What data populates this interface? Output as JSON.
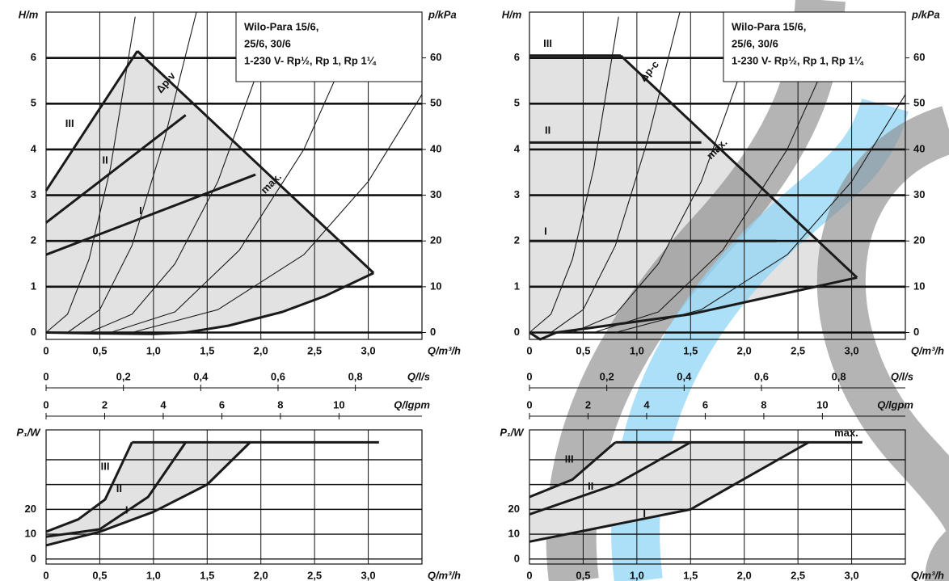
{
  "chart_data": [
    {
      "type": "line",
      "x_label": "Q/m³/h",
      "y_label": "H/m",
      "y2_label": "p/kPa",
      "box": [
        "Wilo-Para 15/6,",
        "25/6, 30/6",
        "1-230 V- Rp½, Rp 1, Rp 1¼"
      ],
      "annotations": [
        "Δp-v"
      ],
      "xlim": [
        0,
        3.5
      ],
      "xticks": [
        0,
        {
          "value": 0.5,
          "label": "0,5"
        },
        {
          "value": 1.0,
          "label": "1,0"
        },
        {
          "value": 1.5,
          "label": "1,5"
        },
        {
          "value": 2.0,
          "label": "2,0"
        },
        {
          "value": 2.5,
          "label": "2,5"
        },
        {
          "value": 3.0,
          "label": "3,0"
        }
      ],
      "ylim": [
        -0.15,
        7
      ],
      "yticks": [
        0,
        1,
        2,
        3,
        4,
        5,
        6
      ],
      "y2lim": [
        -1.5,
        70
      ],
      "y2ticks": [
        0,
        10,
        20,
        30,
        40,
        50,
        60
      ],
      "ls_axis": {
        "label": "Q/l/s",
        "ticks": [
          0,
          {
            "value": 0.2,
            "label": "0,2"
          },
          {
            "value": 0.4,
            "label": "0,4"
          },
          {
            "value": 0.6,
            "label": "0,6"
          },
          {
            "value": 0.8,
            "label": "0,8"
          }
        ]
      },
      "gpm_axis": {
        "label": "Q/lgpm",
        "ticks": [
          0,
          2,
          4,
          6,
          8,
          10
        ]
      },
      "grid": true,
      "series": [
        {
          "name": "III",
          "color": "#1a1a1a",
          "x": [
            0,
            0.85
          ],
          "values": [
            3.1,
            6.15
          ]
        },
        {
          "name": "II",
          "color": "#1a1a1a",
          "x": [
            0,
            1.3
          ],
          "values": [
            2.4,
            4.75
          ]
        },
        {
          "name": "I",
          "color": "#1a1a1a",
          "x": [
            0,
            1.95
          ],
          "values": [
            1.7,
            3.45
          ]
        },
        {
          "name": "max.",
          "color": "#1a1a1a",
          "x": [
            0.85,
            3.05
          ],
          "values": [
            6.15,
            1.3
          ]
        },
        {
          "color": "#1a1a1a",
          "x": [
            0,
            0.5,
            1.0,
            1.3,
            1.7,
            2.2,
            2.6,
            3.05
          ],
          "values": [
            0,
            -0.02,
            -0.03,
            0,
            0.15,
            0.45,
            0.8,
            1.3
          ]
        },
        {
          "color": "#1a1a1a",
          "x": [
            0,
            0.2,
            0.4,
            0.6,
            0.83
          ],
          "values": [
            0,
            0.4,
            1.6,
            3.6,
            6.9
          ]
        },
        {
          "color": "#1a1a1a",
          "x": [
            0.2,
            0.5,
            0.8,
            1.1,
            1.4
          ],
          "values": [
            0,
            0.5,
            1.9,
            4.2,
            7.0
          ]
        },
        {
          "color": "#1a1a1a",
          "x": [
            0.4,
            0.8,
            1.2,
            1.6,
            2.0,
            2.15
          ],
          "values": [
            0,
            0.4,
            1.5,
            3.3,
            5.9,
            7.0
          ]
        },
        {
          "color": "#1a1a1a",
          "x": [
            0.6,
            1.2,
            1.8,
            2.4,
            2.97
          ],
          "values": [
            0,
            0.45,
            1.8,
            4.0,
            7.0
          ]
        },
        {
          "color": "#1a1a1a",
          "x": [
            0.8,
            1.6,
            2.4,
            3.0,
            3.5
          ],
          "values": [
            0,
            0.5,
            1.7,
            3.3,
            5.2
          ]
        }
      ]
    },
    {
      "type": "line",
      "x_label": "Q/m³/h",
      "y_label": "P₁/W",
      "xlim": [
        0,
        3.5
      ],
      "xticks": [
        0,
        {
          "value": 0.5,
          "label": "0,5"
        },
        {
          "value": 1.0,
          "label": "1,0"
        },
        {
          "value": 1.5,
          "label": "1,5"
        },
        {
          "value": 2.0,
          "label": "2,0"
        },
        {
          "value": 2.5,
          "label": "2,5"
        },
        {
          "value": 3.0,
          "label": "3,0"
        }
      ],
      "ylim": [
        -2,
        52
      ],
      "yticks": [
        0,
        10,
        20
      ],
      "grid": true,
      "series": [
        {
          "name": "III",
          "color": "#1a1a1a",
          "x": [
            0,
            0.3,
            0.55,
            0.8
          ],
          "values": [
            11,
            16,
            24,
            47
          ]
        },
        {
          "name": "II",
          "color": "#1a1a1a",
          "x": [
            0,
            0.5,
            0.95,
            1.3
          ],
          "values": [
            9,
            12,
            25,
            47
          ]
        },
        {
          "name": "I",
          "color": "#1a1a1a",
          "x": [
            0,
            0.5,
            1.0,
            1.5,
            1.9
          ],
          "values": [
            5.5,
            11,
            19,
            30,
            47
          ]
        },
        {
          "color": "#1a1a1a",
          "x": [
            0.8,
            3.1
          ],
          "values": [
            47,
            47
          ]
        }
      ]
    },
    {
      "type": "line",
      "x_label": "Q/m³/h",
      "y_label": "H/m",
      "y2_label": "p/kPa",
      "box": [
        "Wilo-Para 15/6,",
        "25/6, 30/6",
        "1-230 V- Rp½, Rp 1, Rp 1¼"
      ],
      "annotations": [
        "Δp-c"
      ],
      "xlim": [
        0,
        3.5
      ],
      "xticks": [
        0,
        {
          "value": 0.5,
          "label": "0,5"
        },
        {
          "value": 1.0,
          "label": "1,0"
        },
        {
          "value": 1.5,
          "label": "1,5"
        },
        {
          "value": 2.0,
          "label": "2,0"
        },
        {
          "value": 2.5,
          "label": "2,5"
        },
        {
          "value": 3.0,
          "label": "3,0"
        }
      ],
      "ylim": [
        -0.15,
        7
      ],
      "yticks": [
        0,
        1,
        2,
        3,
        4,
        5,
        6
      ],
      "y2lim": [
        -1.5,
        70
      ],
      "y2ticks": [
        0,
        10,
        20,
        30,
        40,
        50,
        60
      ],
      "ls_axis": {
        "label": "Q/l/s",
        "ticks": [
          0,
          {
            "value": 0.2,
            "label": "0,2"
          },
          {
            "value": 0.4,
            "label": "0,4"
          },
          {
            "value": 0.6,
            "label": "0,6"
          },
          {
            "value": 0.8,
            "label": "0,8"
          }
        ]
      },
      "gpm_axis": {
        "label": "Q/lgpm",
        "ticks": [
          0,
          2,
          4,
          6,
          8,
          10
        ]
      },
      "grid": true,
      "series": [
        {
          "name": "III",
          "color": "#1a1a1a",
          "x": [
            0,
            0.85
          ],
          "values": [
            6.05,
            6.05
          ]
        },
        {
          "name": "II",
          "color": "#1a1a1a",
          "x": [
            0,
            1.6
          ],
          "values": [
            4.15,
            4.15
          ]
        },
        {
          "name": "I",
          "color": "#1a1a1a",
          "x": [
            0,
            2.3
          ],
          "values": [
            2,
            2
          ]
        },
        {
          "name": "max.",
          "color": "#1a1a1a",
          "x": [
            0.85,
            3.05
          ],
          "values": [
            6.05,
            1.2
          ]
        },
        {
          "color": "#1a1a1a",
          "x": [
            0,
            0.1,
            0.25,
            0.5,
            1.5,
            3.05
          ],
          "values": [
            0,
            -0.15,
            0,
            0.08,
            0.4,
            1.2
          ]
        },
        {
          "color": "#1a1a1a",
          "x": [
            0,
            0.2,
            0.4,
            0.6,
            0.83
          ],
          "values": [
            0,
            0.4,
            1.6,
            3.6,
            6.9
          ]
        },
        {
          "color": "#1a1a1a",
          "x": [
            0.2,
            0.5,
            0.8,
            1.1,
            1.4
          ],
          "values": [
            0,
            0.5,
            1.9,
            4.2,
            7.0
          ]
        },
        {
          "color": "#1a1a1a",
          "x": [
            0.4,
            0.8,
            1.2,
            1.6,
            2.0,
            2.15
          ],
          "values": [
            0,
            0.4,
            1.5,
            3.3,
            5.9,
            7.0
          ]
        },
        {
          "color": "#1a1a1a",
          "x": [
            0.6,
            1.2,
            1.8,
            2.4,
            2.97
          ],
          "values": [
            0,
            0.45,
            1.8,
            4.0,
            7.0
          ]
        },
        {
          "color": "#1a1a1a",
          "x": [
            0.8,
            1.6,
            2.4,
            3.0,
            3.5
          ],
          "values": [
            0,
            0.5,
            1.7,
            3.3,
            5.2
          ]
        }
      ]
    },
    {
      "type": "line",
      "x_label": "Q/m³/h",
      "y_label": "P₁/W",
      "xlim": [
        0,
        3.5
      ],
      "xticks": [
        0,
        {
          "value": 0.5,
          "label": "0,5"
        },
        {
          "value": 1.0,
          "label": "1,0"
        },
        {
          "value": 1.5,
          "label": "1,5"
        },
        {
          "value": 2.0,
          "label": "2,0"
        },
        {
          "value": 2.5,
          "label": "2,5"
        },
        {
          "value": 3.0,
          "label": "3,0"
        }
      ],
      "ylim": [
        -2,
        52
      ],
      "yticks": [
        0,
        10,
        20
      ],
      "grid": true,
      "series": [
        {
          "name": "III",
          "color": "#1a1a1a",
          "x": [
            0,
            0.4,
            0.8
          ],
          "values": [
            25,
            32,
            47
          ]
        },
        {
          "name": "II",
          "color": "#1a1a1a",
          "x": [
            0,
            0.8,
            1.5
          ],
          "values": [
            18,
            30,
            47
          ]
        },
        {
          "name": "I",
          "color": "#1a1a1a",
          "x": [
            0,
            1.5,
            2.6
          ],
          "values": [
            7,
            20,
            47
          ]
        },
        {
          "name": "max.",
          "color": "#1a1a1a",
          "x": [
            0.8,
            3.1
          ],
          "values": [
            47,
            47
          ]
        }
      ]
    }
  ]
}
